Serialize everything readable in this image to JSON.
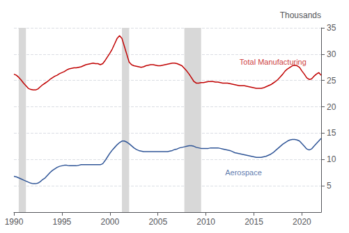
{
  "chart_data": {
    "type": "line",
    "y_label": "Thousands",
    "xlim": [
      1990,
      2022
    ],
    "ylim": [
      0,
      35
    ],
    "xticks": [
      1990,
      1995,
      2000,
      2005,
      2010,
      2015,
      2020
    ],
    "yticks": [
      5,
      10,
      15,
      20,
      25,
      30,
      35
    ],
    "grid": true,
    "recession_bands": [
      [
        1990.5,
        1991.25
      ],
      [
        2001.25,
        2002.0
      ],
      [
        2007.75,
        2009.5
      ]
    ],
    "recession_color": "#d8d8d8",
    "x": [
      1990.0,
      1990.25,
      1990.5,
      1990.75,
      1991.0,
      1991.25,
      1991.5,
      1991.75,
      1992.0,
      1992.25,
      1992.5,
      1992.75,
      1993.0,
      1993.25,
      1993.5,
      1993.75,
      1994.0,
      1994.25,
      1994.5,
      1994.75,
      1995.0,
      1995.25,
      1995.5,
      1995.75,
      1996.0,
      1996.25,
      1996.5,
      1996.75,
      1997.0,
      1997.25,
      1997.5,
      1997.75,
      1998.0,
      1998.25,
      1998.5,
      1998.75,
      1999.0,
      1999.25,
      1999.5,
      1999.75,
      2000.0,
      2000.25,
      2000.5,
      2000.75,
      2001.0,
      2001.25,
      2001.5,
      2001.75,
      2002.0,
      2002.25,
      2002.5,
      2002.75,
      2003.0,
      2003.25,
      2003.5,
      2003.75,
      2004.0,
      2004.25,
      2004.5,
      2004.75,
      2005.0,
      2005.25,
      2005.5,
      2005.75,
      2006.0,
      2006.25,
      2006.5,
      2006.75,
      2007.0,
      2007.25,
      2007.5,
      2007.75,
      2008.0,
      2008.25,
      2008.5,
      2008.75,
      2009.0,
      2009.25,
      2009.5,
      2009.75,
      2010.0,
      2010.25,
      2010.5,
      2010.75,
      2011.0,
      2011.25,
      2011.5,
      2011.75,
      2012.0,
      2012.25,
      2012.5,
      2012.75,
      2013.0,
      2013.25,
      2013.5,
      2013.75,
      2014.0,
      2014.25,
      2014.5,
      2014.75,
      2015.0,
      2015.25,
      2015.5,
      2015.75,
      2016.0,
      2016.25,
      2016.5,
      2016.75,
      2017.0,
      2017.25,
      2017.5,
      2017.75,
      2018.0,
      2018.25,
      2018.5,
      2018.75,
      2019.0,
      2019.25,
      2019.5,
      2019.75,
      2020.0,
      2020.25,
      2020.5,
      2020.75,
      2021.0,
      2021.25,
      2021.5,
      2021.75,
      2022.0
    ],
    "series": [
      {
        "name": "Total Manufacturing",
        "color": "#c00000",
        "values": [
          26.2,
          26.0,
          25.6,
          25.1,
          24.5,
          24.0,
          23.5,
          23.3,
          23.2,
          23.2,
          23.4,
          23.8,
          24.2,
          24.5,
          24.8,
          25.2,
          25.5,
          25.8,
          26.0,
          26.3,
          26.5,
          26.7,
          27.0,
          27.2,
          27.3,
          27.4,
          27.4,
          27.5,
          27.6,
          27.8,
          28.0,
          28.1,
          28.2,
          28.3,
          28.2,
          28.2,
          28.0,
          28.2,
          28.8,
          29.5,
          30.2,
          31.0,
          32.0,
          33.0,
          33.5,
          33.0,
          31.5,
          30.0,
          28.5,
          28.0,
          27.8,
          27.7,
          27.6,
          27.5,
          27.6,
          27.8,
          27.9,
          28.0,
          28.0,
          27.9,
          27.8,
          27.8,
          27.9,
          28.0,
          28.1,
          28.2,
          28.3,
          28.3,
          28.2,
          28.0,
          27.8,
          27.3,
          26.8,
          26.2,
          25.5,
          24.8,
          24.5,
          24.5,
          24.6,
          24.6,
          24.7,
          24.8,
          24.8,
          24.8,
          24.7,
          24.7,
          24.6,
          24.5,
          24.5,
          24.5,
          24.4,
          24.3,
          24.2,
          24.1,
          24.0,
          24.0,
          24.0,
          23.9,
          23.8,
          23.7,
          23.6,
          23.5,
          23.5,
          23.5,
          23.6,
          23.8,
          24.0,
          24.2,
          24.5,
          24.8,
          25.2,
          25.7,
          26.2,
          26.8,
          27.2,
          27.5,
          27.8,
          27.9,
          27.8,
          27.5,
          26.8,
          26.2,
          25.5,
          25.2,
          25.3,
          25.8,
          26.2,
          26.5,
          26.0
        ]
      },
      {
        "name": "Aerospace",
        "color": "#2f5597",
        "values": [
          6.8,
          6.7,
          6.5,
          6.3,
          6.1,
          5.9,
          5.7,
          5.5,
          5.4,
          5.4,
          5.5,
          5.8,
          6.2,
          6.5,
          7.0,
          7.5,
          7.9,
          8.2,
          8.5,
          8.7,
          8.8,
          8.9,
          8.9,
          8.8,
          8.8,
          8.8,
          8.8,
          8.9,
          9.0,
          9.0,
          9.0,
          9.0,
          9.0,
          9.0,
          9.0,
          9.0,
          9.0,
          9.2,
          9.8,
          10.5,
          11.2,
          11.8,
          12.3,
          12.8,
          13.2,
          13.5,
          13.5,
          13.3,
          13.0,
          12.6,
          12.2,
          11.9,
          11.7,
          11.6,
          11.5,
          11.5,
          11.5,
          11.5,
          11.5,
          11.5,
          11.5,
          11.5,
          11.5,
          11.5,
          11.5,
          11.6,
          11.7,
          11.9,
          12.0,
          12.2,
          12.3,
          12.4,
          12.5,
          12.6,
          12.6,
          12.5,
          12.3,
          12.2,
          12.1,
          12.1,
          12.1,
          12.1,
          12.2,
          12.2,
          12.2,
          12.2,
          12.1,
          12.0,
          11.9,
          11.8,
          11.7,
          11.5,
          11.3,
          11.2,
          11.1,
          11.0,
          10.9,
          10.8,
          10.7,
          10.6,
          10.5,
          10.4,
          10.4,
          10.4,
          10.5,
          10.6,
          10.8,
          11.0,
          11.3,
          11.7,
          12.1,
          12.5,
          12.9,
          13.2,
          13.5,
          13.7,
          13.8,
          13.8,
          13.7,
          13.5,
          13.0,
          12.5,
          12.0,
          11.8,
          12.0,
          12.5,
          13.0,
          13.5,
          14.0
        ]
      }
    ],
    "annotations": [
      {
        "text": "Total Manufacturing",
        "x": 2013.5,
        "y": 27.8,
        "color": "#c00000",
        "anchor": "bottom"
      },
      {
        "text": "Aerospace",
        "x": 2012.0,
        "y": 8.2,
        "color": "#2f5597",
        "anchor": "top"
      }
    ]
  }
}
